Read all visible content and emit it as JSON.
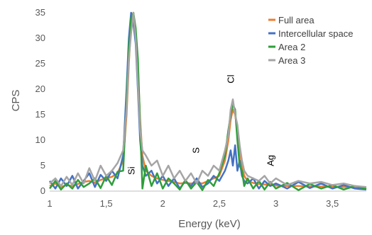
{
  "chart_data": {
    "type": "line",
    "xlabel": "Energy (keV)",
    "ylabel": "CPS",
    "xlim": [
      1,
      3.8
    ],
    "ylim": [
      0,
      35
    ],
    "x_ticks": [
      {
        "value": 1,
        "label": "1"
      },
      {
        "value": 1.5,
        "label": "1,5"
      },
      {
        "value": 2,
        "label": "2"
      },
      {
        "value": 2.5,
        "label": "2,5"
      },
      {
        "value": 3,
        "label": "3"
      },
      {
        "value": 3.5,
        "label": "3,5"
      }
    ],
    "y_ticks": [
      {
        "value": 0,
        "label": "0"
      },
      {
        "value": 5,
        "label": "5"
      },
      {
        "value": 10,
        "label": "10"
      },
      {
        "value": 15,
        "label": "15"
      },
      {
        "value": 20,
        "label": "20"
      },
      {
        "value": 25,
        "label": "25"
      },
      {
        "value": 30,
        "label": "30"
      },
      {
        "value": 35,
        "label": "35"
      }
    ],
    "grid": false,
    "legend_position": "top-right",
    "annotations": [
      {
        "text": "Si",
        "x": 1.75,
        "y": 4
      },
      {
        "text": "S",
        "x": 2.32,
        "y": 8
      },
      {
        "text": "Cl",
        "x": 2.63,
        "y": 22
      },
      {
        "text": "Ag",
        "x": 2.98,
        "y": 6
      }
    ],
    "series": [
      {
        "name": "Full area",
        "color": "#ED7D31",
        "x": [
          1.0,
          1.05,
          1.1,
          1.15,
          1.2,
          1.25,
          1.3,
          1.35,
          1.4,
          1.45,
          1.5,
          1.55,
          1.6,
          1.65,
          1.68,
          1.7,
          1.72,
          1.74,
          1.76,
          1.78,
          1.8,
          1.82,
          1.85,
          1.9,
          1.95,
          2.0,
          2.05,
          2.1,
          2.15,
          2.2,
          2.25,
          2.3,
          2.35,
          2.4,
          2.45,
          2.5,
          2.55,
          2.58,
          2.6,
          2.62,
          2.64,
          2.66,
          2.68,
          2.7,
          2.72,
          2.75,
          2.8,
          2.85,
          2.9,
          2.95,
          3.0,
          3.1,
          3.2,
          3.3,
          3.4,
          3.5,
          3.6,
          3.7,
          3.8
        ],
        "values": [
          1,
          1.5,
          0.8,
          1.2,
          1.0,
          1.4,
          1.8,
          2.0,
          1.6,
          2.2,
          2.5,
          2.8,
          3.5,
          6,
          15,
          25,
          33,
          35,
          31,
          24,
          14,
          7,
          4,
          3,
          2.5,
          2.2,
          2.0,
          1.8,
          1.5,
          1.6,
          1.5,
          1.7,
          1.5,
          2.0,
          2.5,
          3.0,
          6,
          10,
          14,
          16,
          15,
          12,
          8,
          5,
          3,
          2,
          1.6,
          1.4,
          1.3,
          1.2,
          1.1,
          1.0,
          1.0,
          0.9,
          0.9,
          0.8,
          0.8,
          0.8,
          0.7
        ]
      },
      {
        "name": "Intercellular space",
        "color": "#4472C4",
        "x": [
          1.0,
          1.05,
          1.1,
          1.15,
          1.2,
          1.25,
          1.3,
          1.35,
          1.4,
          1.45,
          1.5,
          1.55,
          1.6,
          1.65,
          1.68,
          1.7,
          1.72,
          1.74,
          1.76,
          1.78,
          1.8,
          1.82,
          1.85,
          1.9,
          1.95,
          2.0,
          2.05,
          2.1,
          2.15,
          2.2,
          2.25,
          2.3,
          2.35,
          2.4,
          2.45,
          2.5,
          2.55,
          2.58,
          2.6,
          2.62,
          2.64,
          2.66,
          2.68,
          2.7,
          2.72,
          2.75,
          2.8,
          2.85,
          2.9,
          2.95,
          3.0,
          3.1,
          3.2,
          3.3,
          3.4,
          3.5,
          3.6,
          3.7,
          3.8
        ],
        "values": [
          2,
          0.5,
          2.5,
          1.0,
          3.0,
          0.5,
          2.0,
          3.5,
          0.8,
          3.2,
          2.0,
          4.0,
          2.5,
          7,
          20,
          30,
          35,
          33,
          29,
          20,
          10,
          5,
          3,
          4,
          1.5,
          3.0,
          1.0,
          2.5,
          0.5,
          2.0,
          1.0,
          2.5,
          0.8,
          1.5,
          3.0,
          2.0,
          4,
          6,
          8,
          5,
          9,
          4,
          6,
          3,
          2,
          1.5,
          2.5,
          0.5,
          2.0,
          1.0,
          1.5,
          0.5,
          1.8,
          0.6,
          1.5,
          0.5,
          1.2,
          0.5,
          0.3
        ]
      },
      {
        "name": "Area 2",
        "color": "#2E9E3A",
        "x": [
          1.0,
          1.05,
          1.1,
          1.15,
          1.2,
          1.25,
          1.3,
          1.35,
          1.4,
          1.45,
          1.5,
          1.55,
          1.6,
          1.65,
          1.68,
          1.7,
          1.72,
          1.74,
          1.76,
          1.78,
          1.8,
          1.82,
          1.85,
          1.9,
          1.95,
          2.0,
          2.05,
          2.1,
          2.15,
          2.2,
          2.25,
          2.3,
          2.35,
          2.4,
          2.45,
          2.5,
          2.55,
          2.58,
          2.6,
          2.62,
          2.64,
          2.66,
          2.68,
          2.7,
          2.72,
          2.75,
          2.8,
          2.85,
          2.9,
          2.95,
          3.0,
          3.1,
          3.2,
          3.3,
          3.4,
          3.5,
          3.6,
          3.7,
          3.8
        ],
        "values": [
          0.5,
          2.0,
          0.3,
          1.5,
          0.5,
          2.2,
          0.8,
          1.5,
          2.5,
          0.6,
          3.0,
          1.2,
          3.8,
          4,
          18,
          28,
          34,
          35,
          32,
          26,
          13,
          0.5,
          5,
          1.0,
          3.5,
          0.5,
          2.5,
          1.5,
          0.3,
          2.2,
          0.5,
          1.8,
          0.2,
          2.2,
          1.0,
          3.5,
          7,
          12,
          15,
          17,
          16,
          10,
          5,
          4,
          1.0,
          2.5,
          0.5,
          2.0,
          0.3,
          1.8,
          0.5,
          1.6,
          0.2,
          1.4,
          0.5,
          1.2,
          0.3,
          1.0,
          0.4
        ]
      },
      {
        "name": "Area 3",
        "color": "#A5A5A5",
        "x": [
          1.0,
          1.05,
          1.1,
          1.15,
          1.2,
          1.25,
          1.3,
          1.35,
          1.4,
          1.45,
          1.5,
          1.55,
          1.6,
          1.65,
          1.68,
          1.7,
          1.72,
          1.74,
          1.76,
          1.78,
          1.8,
          1.82,
          1.85,
          1.9,
          1.95,
          2.0,
          2.05,
          2.1,
          2.15,
          2.2,
          2.25,
          2.3,
          2.35,
          2.4,
          2.45,
          2.5,
          2.55,
          2.58,
          2.6,
          2.62,
          2.64,
          2.66,
          2.68,
          2.7,
          2.72,
          2.75,
          2.8,
          2.85,
          2.9,
          2.95,
          3.0,
          3.1,
          3.2,
          3.3,
          3.4,
          3.5,
          3.6,
          3.7,
          3.8
        ],
        "values": [
          1.5,
          2.5,
          1.0,
          2.8,
          1.2,
          3.5,
          1.5,
          4.5,
          2.0,
          5.0,
          3.0,
          4.0,
          5.5,
          8,
          16,
          26,
          31,
          35,
          30,
          21,
          12,
          8,
          7,
          5,
          6,
          3,
          5,
          2.5,
          4,
          2,
          3.5,
          1.5,
          4,
          3,
          5,
          4,
          8,
          11,
          16,
          18,
          15,
          13,
          9,
          6,
          4,
          3,
          2.5,
          2,
          3,
          1.5,
          2.5,
          1.2,
          2,
          1.5,
          1.8,
          1.2,
          1.5,
          1.0,
          0.8
        ]
      }
    ]
  }
}
